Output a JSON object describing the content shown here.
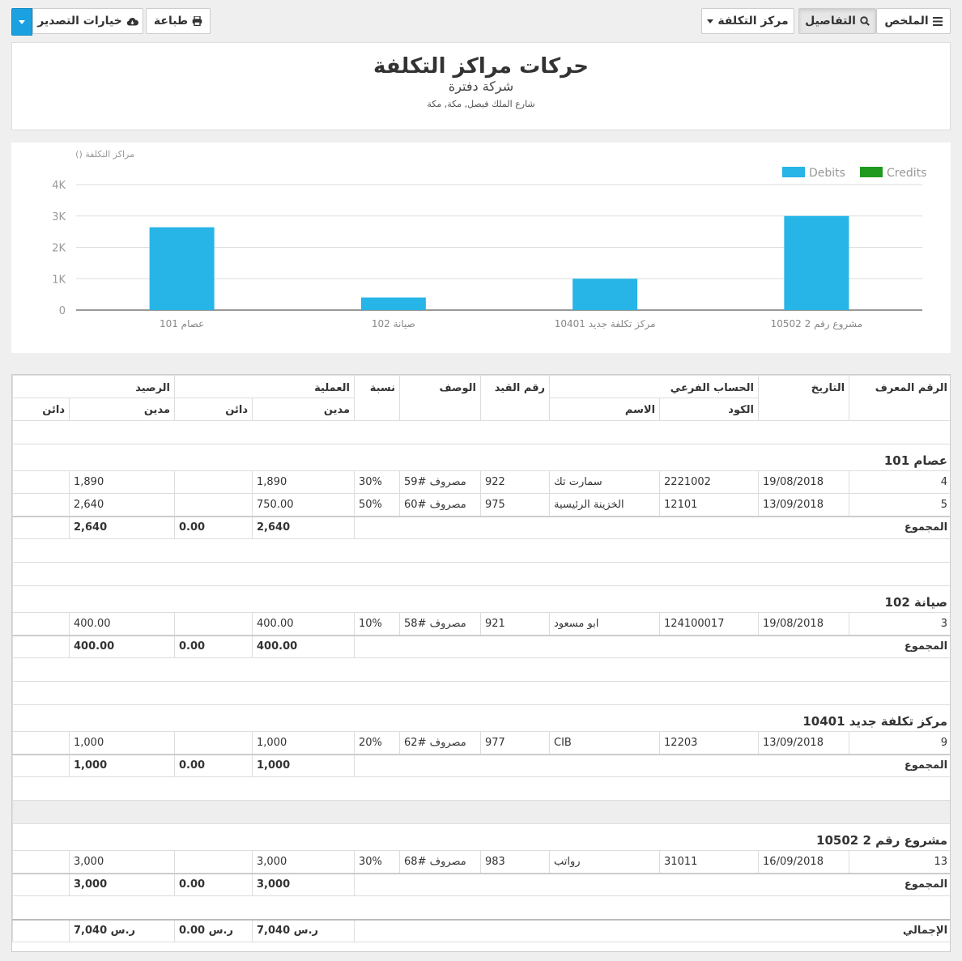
{
  "toolbar": {
    "summary_label": "الملخص",
    "details_label": "التفاصيل",
    "cost_center_label": "مركز التكلفة",
    "print_label": "طباعة",
    "export_label": "خيارات التصدير"
  },
  "report": {
    "title": "حركات مراكز التكلفة",
    "company": "شركة دفترة",
    "address": "شارع الملك فيصل, مكة, مكة"
  },
  "chart_data": {
    "type": "bar",
    "ylabel": "() مراكز التكلفة",
    "categories": [
      "عصام 101",
      "صيانة 102",
      "مركز تكلفة جديد 10401",
      "مشروع رقم 2 10502"
    ],
    "series": [
      {
        "name": "Debits",
        "color": "#26b5e6",
        "values": [
          2640,
          400,
          1000,
          3000
        ]
      },
      {
        "name": "Credits",
        "color": "#1f9a1f",
        "values": [
          0,
          0,
          0,
          0
        ]
      }
    ],
    "ylim": [
      0,
      4000
    ],
    "ticks": [
      "0",
      "1K",
      "2K",
      "3K",
      "4K"
    ],
    "legend": "top-right",
    "grid": true
  },
  "table": {
    "headers": {
      "id": "الرقم المعرف",
      "date": "التاريخ",
      "sub_account": "الحساب الفرعي",
      "code": "الكود",
      "name": "الاسم",
      "entry_no": "رقم القيد",
      "description": "الوصف",
      "ratio": "نسبة",
      "transaction": "العملية",
      "debit": "مدين",
      "credit": "دائن",
      "balance": "الرصيد",
      "balance_debit": "مدين",
      "balance_credit": "دائن"
    },
    "total_label": "المجموع",
    "grand_total_label": "الإجمالي",
    "groups": [
      {
        "name": "عصام 101",
        "rows": [
          {
            "id": "4",
            "date": "19/08/2018",
            "code": "2221002",
            "name": "سمارت تك",
            "entry": "922",
            "desc": "مصروف #59",
            "ratio": "30%",
            "debit": "1,890",
            "credit": "",
            "bal_debit": "1,890",
            "bal_credit": ""
          },
          {
            "id": "5",
            "date": "13/09/2018",
            "code": "12101",
            "name": "الخزينة الرئيسية",
            "entry": "975",
            "desc": "مصروف #60",
            "ratio": "50%",
            "debit": "750.00",
            "credit": "",
            "bal_debit": "2,640",
            "bal_credit": ""
          }
        ],
        "total": {
          "debit": "2,640",
          "credit": "0.00",
          "bal_debit": "2,640"
        }
      },
      {
        "name": "صيانة 102",
        "rows": [
          {
            "id": "3",
            "date": "19/08/2018",
            "code": "124100017",
            "name": "ابو مسعود",
            "entry": "921",
            "desc": "مصروف #58",
            "ratio": "10%",
            "debit": "400.00",
            "credit": "",
            "bal_debit": "400.00",
            "bal_credit": ""
          }
        ],
        "total": {
          "debit": "400.00",
          "credit": "0.00",
          "bal_debit": "400.00"
        }
      },
      {
        "name": "مركز تكلفة جديد 10401",
        "rows": [
          {
            "id": "9",
            "date": "13/09/2018",
            "code": "12203",
            "name": "CIB",
            "entry": "977",
            "desc": "مصروف #62",
            "ratio": "20%",
            "debit": "1,000",
            "credit": "",
            "bal_debit": "1,000",
            "bal_credit": ""
          }
        ],
        "total": {
          "debit": "1,000",
          "credit": "0.00",
          "bal_debit": "1,000"
        }
      },
      {
        "name": "مشروع رقم 2 10502",
        "rows": [
          {
            "id": "13",
            "date": "16/09/2018",
            "code": "31011",
            "name": "رواتب",
            "entry": "983",
            "desc": "مصروف #68",
            "ratio": "30%",
            "debit": "3,000",
            "credit": "",
            "bal_debit": "3,000",
            "bal_credit": ""
          }
        ],
        "total": {
          "debit": "3,000",
          "credit": "0.00",
          "bal_debit": "3,000"
        }
      }
    ],
    "grand_total": {
      "debit": "7,040 ر.س",
      "credit": "0.00 ر.س",
      "bal_debit": "7,040 ر.س"
    }
  }
}
